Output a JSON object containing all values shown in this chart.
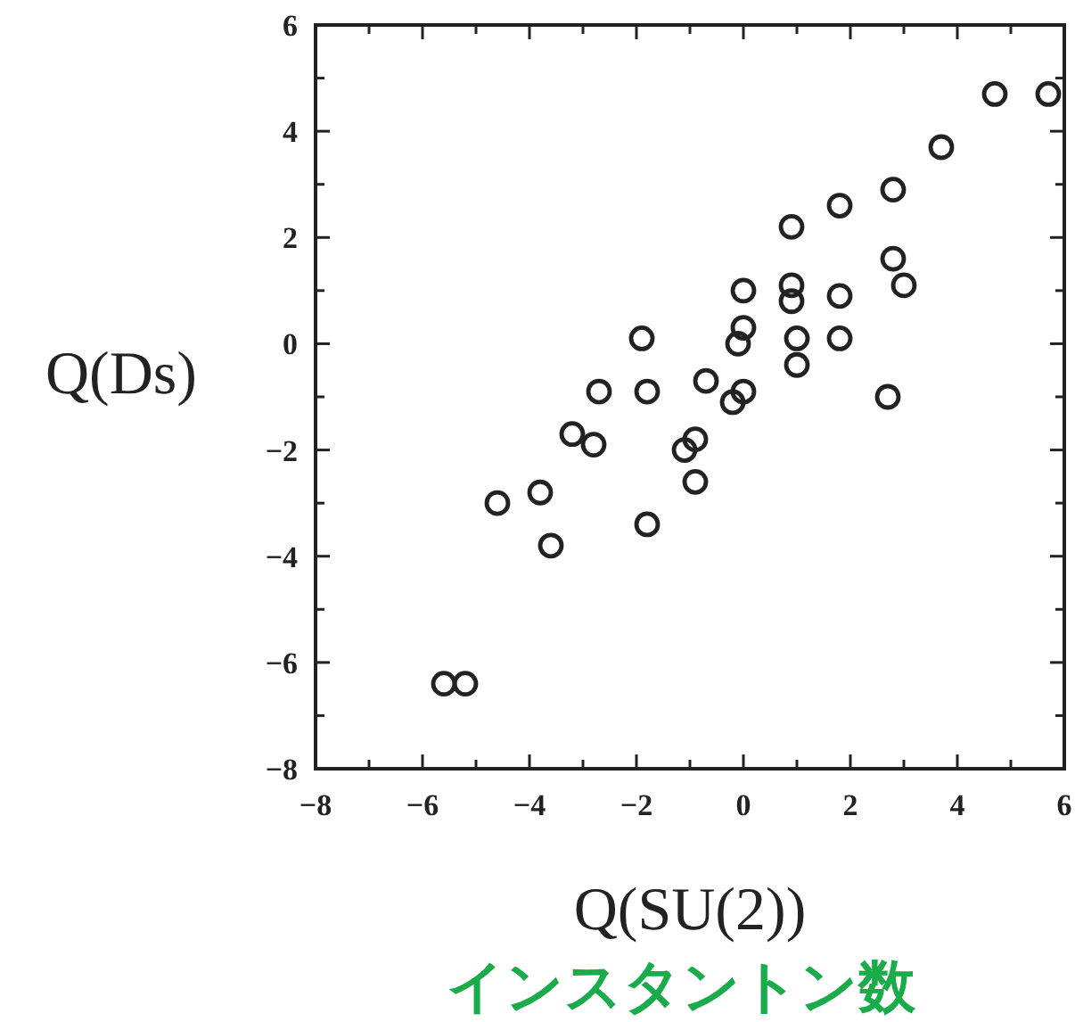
{
  "chart_data": {
    "type": "scatter",
    "xlabel": "Q(SU(2))",
    "ylabel": "Q(Ds)",
    "annotations": [
      "インスタントン数"
    ],
    "xlim": [
      -8,
      6
    ],
    "ylim": [
      -8,
      6
    ],
    "xticks": [
      -8,
      {
        "value": -7,
        "label": null
      },
      -6,
      {
        "value": -5,
        "label": null
      },
      -4,
      {
        "value": -3,
        "label": null
      },
      -2,
      {
        "value": -1,
        "label": null
      },
      0,
      {
        "value": 1,
        "label": null
      },
      2,
      {
        "value": 3,
        "label": null
      },
      4,
      {
        "value": 5,
        "label": null
      },
      6
    ],
    "yticks": [
      -8,
      {
        "value": -7,
        "label": null
      },
      -6,
      {
        "value": -5,
        "label": null
      },
      -4,
      {
        "value": -3,
        "label": null
      },
      -2,
      {
        "value": -1,
        "label": null
      },
      0,
      {
        "value": 1,
        "label": null
      },
      2,
      {
        "value": 3,
        "label": null
      },
      4,
      {
        "value": 5,
        "label": null
      },
      6
    ],
    "marker": "circle",
    "grid": false,
    "series": [
      {
        "color": "#222222",
        "x": [
          4.7,
          5.7,
          3.7,
          2.8,
          1.8,
          0.9,
          2.8,
          3.0,
          0.0,
          0.9,
          0.9,
          1.8,
          0.0,
          -0.1,
          1.0,
          1.8,
          -1.9,
          1.0,
          -0.7,
          0.0,
          -0.2,
          -2.7,
          -1.8,
          2.7,
          -3.2,
          -2.8,
          -1.1,
          -0.9,
          -0.9,
          -4.6,
          -3.8,
          -3.6,
          -1.8,
          -5.6,
          -5.2
        ],
        "values": [
          4.7,
          4.7,
          3.7,
          2.9,
          2.6,
          2.2,
          1.6,
          1.1,
          1.0,
          1.1,
          0.8,
          0.9,
          0.3,
          0.0,
          0.1,
          0.1,
          0.1,
          -0.4,
          -0.7,
          -0.9,
          -1.1,
          -0.9,
          -0.9,
          -1.0,
          -1.7,
          -1.9,
          -2.0,
          -1.8,
          -2.6,
          -3.0,
          -2.8,
          -3.8,
          -3.4,
          -6.4,
          -6.4
        ]
      }
    ]
  }
}
